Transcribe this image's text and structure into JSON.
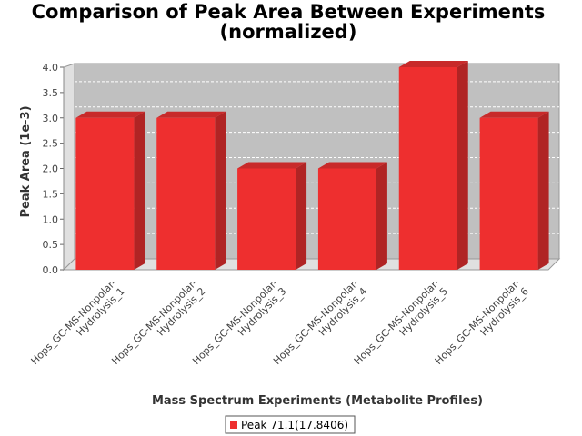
{
  "chart_data": {
    "type": "bar",
    "title_lines": [
      "Comparison of Peak Area Between Experiments",
      "(normalized)"
    ],
    "xlabel": "Mass Spectrum Experiments (Metabolite Profiles)",
    "ylabel": "Peak Area (1e-3)",
    "ylim": [
      0,
      4.0
    ],
    "yticks": [
      "0.0",
      "0.5",
      "1.0",
      "1.5",
      "2.0",
      "2.5",
      "3.0",
      "3.5",
      "4.0"
    ],
    "categories": [
      [
        "Hops_GC-MS-Nonpolar-",
        "Hydrolysis_1"
      ],
      [
        "Hops_GC-MS-Nonpolar-",
        "Hydrolysis_2"
      ],
      [
        "Hops_GC-MS-Nonpolar-",
        "Hydrolysis_3"
      ],
      [
        "Hops_GC-MS-Nonpolar-",
        "Hydrolysis_4"
      ],
      [
        "Hops_GC-MS-Nonpolar-",
        "Hydrolysis_5"
      ],
      [
        "Hops_GC-MS-Nonpolar-",
        "Hydrolysis_6"
      ]
    ],
    "series": [
      {
        "name": "Peak 71.1(17.8406)",
        "values": [
          3.0,
          3.0,
          2.0,
          2.0,
          4.0,
          3.0
        ],
        "color": "#ee2f2f"
      }
    ],
    "grid": true,
    "legend": "bottom-center",
    "plot_background": "#c0c0c0",
    "style": "3d"
  }
}
